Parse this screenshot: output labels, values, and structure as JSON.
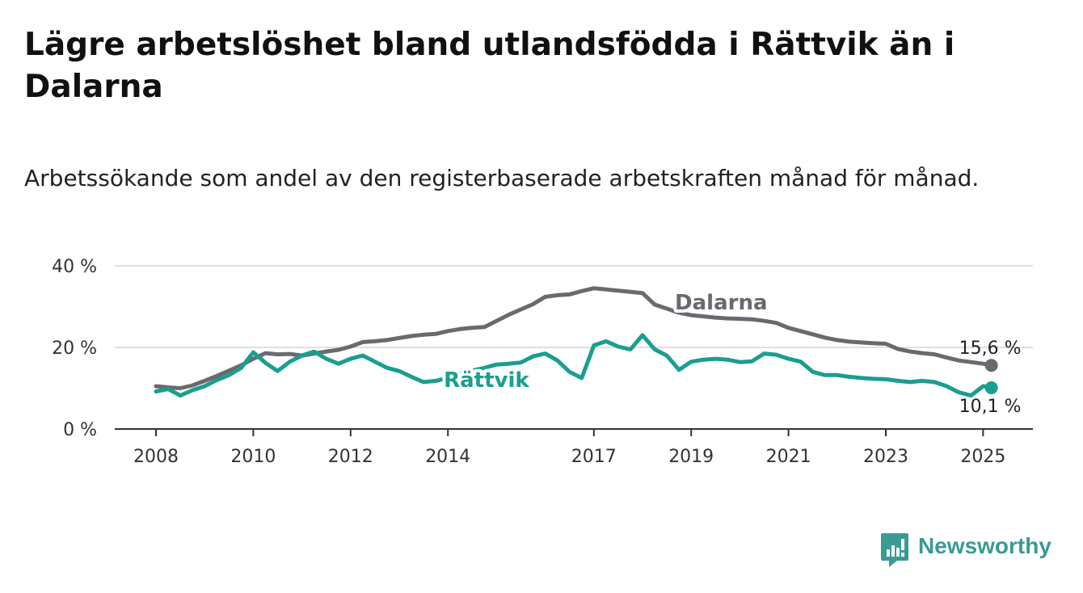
{
  "title": "Lägre arbetslöshet bland utlandsfödda i Rättvik än i Dalarna",
  "subtitle": "Arbetssökande som andel av den registerbaserade arbetskraften månad för månad.",
  "brand": {
    "name": "Newsworthy",
    "color": "#3a9a94"
  },
  "chart_data": {
    "type": "line",
    "title": "Lägre arbetslöshet bland utlandsfödda i Rättvik än i Dalarna",
    "subtitle": "Arbetssökande som andel av den registerbaserade arbetskraften månad för månad.",
    "xlim": [
      2007.5,
      2026.0
    ],
    "ylim": [
      0,
      40
    ],
    "y_ticks": [
      0,
      20,
      40
    ],
    "y_tick_labels": [
      "0 %",
      "20 %",
      "40 %"
    ],
    "x_ticks": [
      2008,
      2010,
      2012,
      2014,
      2017,
      2019,
      2021,
      2023,
      2025
    ],
    "x_tick_labels": [
      "2008",
      "2010",
      "2012",
      "2014",
      "2017",
      "2019",
      "2021",
      "2023",
      "2025"
    ],
    "grid": true,
    "legend": "inline labels on lines",
    "series": [
      {
        "name": "Dalarna",
        "color": "#6b6870",
        "end_label": "15,6 %",
        "x": [
          2008.0,
          2008.25,
          2008.5,
          2008.75,
          2009.0,
          2009.25,
          2009.5,
          2009.75,
          2010.0,
          2010.25,
          2010.5,
          2010.75,
          2011.0,
          2011.25,
          2011.5,
          2011.75,
          2012.0,
          2012.25,
          2012.5,
          2012.75,
          2013.0,
          2013.25,
          2013.5,
          2013.75,
          2014.0,
          2014.25,
          2014.5,
          2014.75,
          2015.0,
          2015.25,
          2015.5,
          2015.75,
          2016.0,
          2016.25,
          2016.5,
          2016.75,
          2017.0,
          2017.25,
          2017.5,
          2017.75,
          2018.0,
          2018.25,
          2018.5,
          2018.75,
          2019.0,
          2019.25,
          2019.5,
          2019.75,
          2020.0,
          2020.25,
          2020.5,
          2020.75,
          2021.0,
          2021.25,
          2021.5,
          2021.75,
          2022.0,
          2022.25,
          2022.5,
          2022.75,
          2023.0,
          2023.25,
          2023.5,
          2023.75,
          2024.0,
          2024.25,
          2024.5,
          2024.75,
          2025.0,
          2025.17
        ],
        "values": [
          10.5,
          10.2,
          10.0,
          10.7,
          11.8,
          13.0,
          14.3,
          15.6,
          17.2,
          18.6,
          18.3,
          18.4,
          18.0,
          18.5,
          19.0,
          19.4,
          20.2,
          21.3,
          21.5,
          21.8,
          22.3,
          22.8,
          23.1,
          23.3,
          24.0,
          24.5,
          24.8,
          25.0,
          26.5,
          28.0,
          29.3,
          30.6,
          32.4,
          32.8,
          33.0,
          33.8,
          34.5,
          34.2,
          33.9,
          33.6,
          33.3,
          30.5,
          29.5,
          28.5,
          27.9,
          27.6,
          27.3,
          27.1,
          27.0,
          26.9,
          26.5,
          26.0,
          24.8,
          24.0,
          23.2,
          22.4,
          21.8,
          21.4,
          21.2,
          21.0,
          20.9,
          19.6,
          19.0,
          18.6,
          18.3,
          17.5,
          16.8,
          16.4,
          16.0,
          15.6
        ]
      },
      {
        "name": "Rättvik",
        "color": "#1a9e8f",
        "end_label": "10,1 %",
        "x": [
          2008.0,
          2008.25,
          2008.5,
          2008.75,
          2009.0,
          2009.25,
          2009.5,
          2009.75,
          2010.0,
          2010.25,
          2010.5,
          2010.75,
          2011.0,
          2011.25,
          2011.5,
          2011.75,
          2012.0,
          2012.25,
          2012.5,
          2012.75,
          2013.0,
          2013.25,
          2013.5,
          2013.75,
          2014.0,
          2014.25,
          2014.5,
          2014.75,
          2015.0,
          2015.25,
          2015.5,
          2015.75,
          2016.0,
          2016.25,
          2016.5,
          2016.75,
          2017.0,
          2017.25,
          2017.5,
          2017.75,
          2018.0,
          2018.25,
          2018.5,
          2018.75,
          2019.0,
          2019.25,
          2019.5,
          2019.75,
          2020.0,
          2020.25,
          2020.5,
          2020.75,
          2021.0,
          2021.25,
          2021.5,
          2021.75,
          2022.0,
          2022.25,
          2022.5,
          2022.75,
          2023.0,
          2023.25,
          2023.5,
          2023.75,
          2024.0,
          2024.25,
          2024.5,
          2024.75,
          2025.0,
          2025.17
        ],
        "values": [
          9.2,
          9.8,
          8.2,
          9.5,
          10.5,
          12.0,
          13.2,
          15.0,
          18.8,
          16.2,
          14.2,
          16.5,
          18.0,
          19.0,
          17.2,
          16.0,
          17.2,
          18.0,
          16.5,
          15.0,
          14.2,
          12.8,
          11.5,
          11.8,
          12.5,
          13.5,
          14.3,
          15.0,
          15.8,
          16.0,
          16.3,
          17.8,
          18.5,
          16.8,
          14.0,
          12.5,
          20.5,
          21.5,
          20.2,
          19.5,
          23.0,
          19.5,
          18.0,
          14.5,
          16.5,
          17.0,
          17.2,
          17.0,
          16.4,
          16.6,
          18.5,
          18.2,
          17.2,
          16.5,
          14.0,
          13.2,
          13.2,
          12.8,
          12.5,
          12.3,
          12.2,
          11.8,
          11.5,
          11.8,
          11.5,
          10.5,
          9.0,
          8.2,
          10.5,
          10.1
        ]
      }
    ]
  }
}
